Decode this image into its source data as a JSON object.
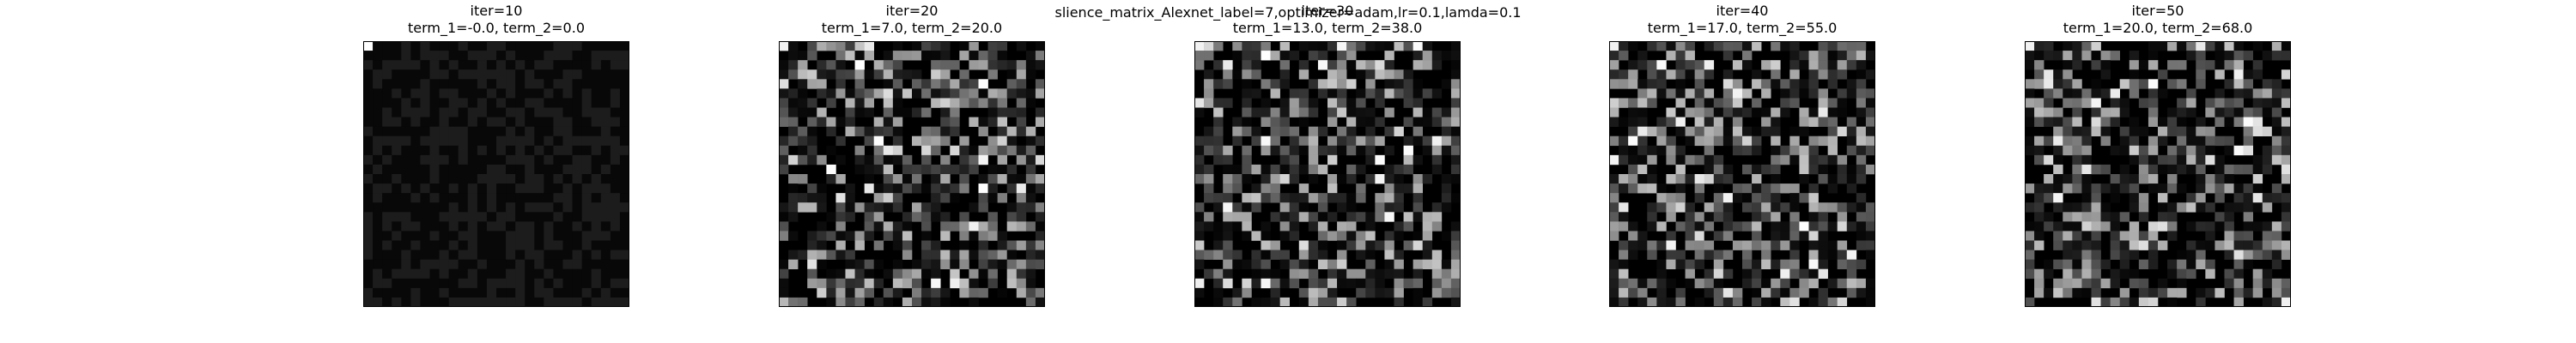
{
  "figure": {
    "suptitle": "slience_matrix_Alexnet_label=7,optimizer=adam,lr=0.1,lamda=0.1"
  },
  "chart_data": {
    "type": "heatmap",
    "colormap": "gray",
    "grid": false,
    "axes_visible": false,
    "panels": [
      {
        "title": "iter=10",
        "subtitle": "term_1=-0.0, term_2=0.0",
        "seed": 11,
        "style": "uniform"
      },
      {
        "title": "iter=20",
        "subtitle": "term_1=7.0, term_2=20.0",
        "seed": 23,
        "style": "textured"
      },
      {
        "title": "iter=30",
        "subtitle": "term_1=13.0, term_2=38.0",
        "seed": 37,
        "style": "textured"
      },
      {
        "title": "iter=40",
        "subtitle": "term_1=17.0, term_2=55.0",
        "seed": 41,
        "style": "textured"
      },
      {
        "title": "iter=50",
        "subtitle": "term_1=20.0, term_2=68.0",
        "seed": 53,
        "style": "textured"
      }
    ],
    "matrix_size": [
      28,
      28
    ]
  }
}
